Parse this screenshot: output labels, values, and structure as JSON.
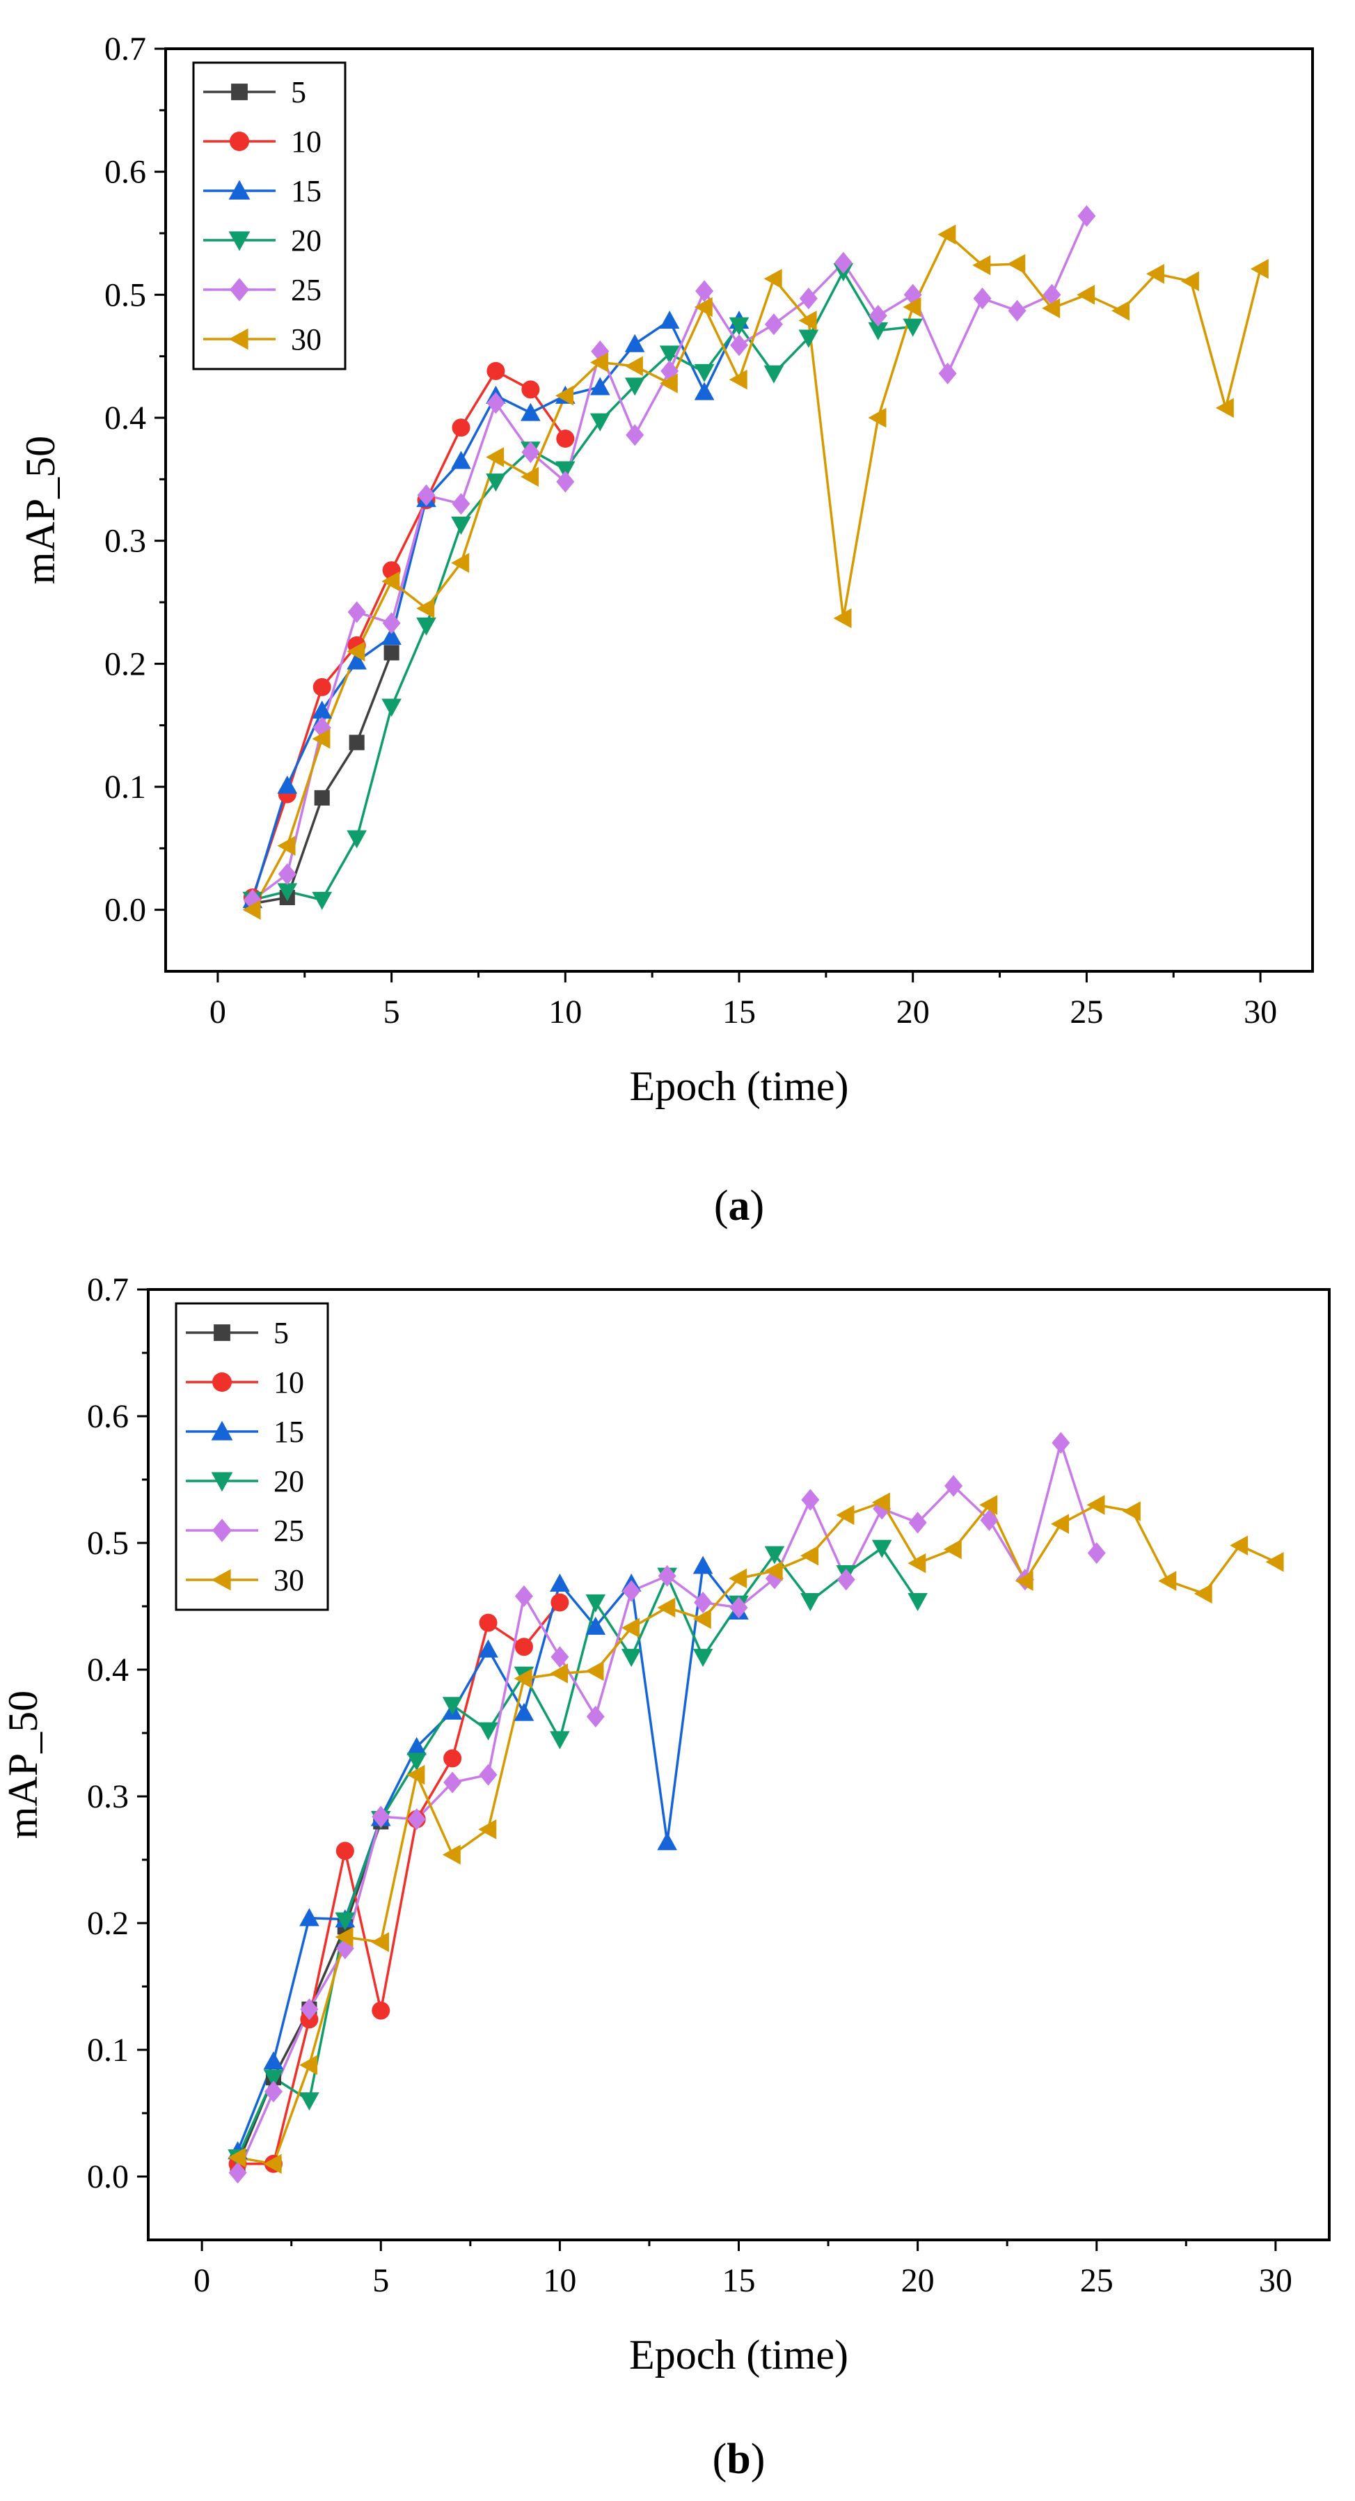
{
  "figure": {
    "panels": [
      "a",
      "b"
    ],
    "panel_label_open": "(",
    "panel_label_close": ")"
  },
  "chart_data": [
    {
      "type": "line",
      "panel": "a",
      "title": "",
      "xlabel": "Epoch (time)",
      "ylabel": "mAP_50",
      "xlim": [
        -1.5,
        31.5
      ],
      "ylim": [
        -0.05,
        0.7
      ],
      "xticks": [
        0,
        5,
        10,
        15,
        20,
        25,
        30
      ],
      "yticks": [
        0.0,
        0.1,
        0.2,
        0.3,
        0.4,
        0.5,
        0.6,
        0.7
      ],
      "ytick_labels": [
        "0.0",
        "0.1",
        "0.2",
        "0.3",
        "0.4",
        "0.5",
        "0.6",
        "0.7"
      ],
      "grid": false,
      "legend_position": "top-left",
      "series": [
        {
          "name": "5",
          "color": "#404040",
          "marker": "square",
          "x": [
            1,
            2,
            3,
            4,
            5
          ],
          "y": [
            0.005,
            0.01,
            0.091,
            0.136,
            0.209
          ]
        },
        {
          "name": "10",
          "color": "#f0312b",
          "marker": "circle",
          "x": [
            1,
            2,
            3,
            4,
            5,
            6,
            7,
            8,
            9,
            10
          ],
          "y": [
            0.01,
            0.094,
            0.181,
            0.215,
            0.276,
            0.333,
            0.392,
            0.438,
            0.423,
            0.383
          ]
        },
        {
          "name": "15",
          "color": "#1565d8",
          "marker": "triangle-up",
          "x": [
            1,
            2,
            3,
            4,
            5,
            6,
            7,
            8,
            9,
            10,
            11,
            12,
            13,
            14,
            15
          ],
          "y": [
            0.008,
            0.101,
            0.162,
            0.202,
            0.222,
            0.334,
            0.365,
            0.418,
            0.404,
            0.418,
            0.425,
            0.46,
            0.479,
            0.421,
            0.479
          ]
        },
        {
          "name": "20",
          "color": "#0f9d6b",
          "marker": "triangle-down",
          "x": [
            1,
            2,
            3,
            4,
            5,
            6,
            7,
            8,
            9,
            10,
            11,
            12,
            13,
            14,
            15,
            16,
            17,
            18,
            19,
            20
          ],
          "y": [
            0.008,
            0.015,
            0.008,
            0.058,
            0.165,
            0.231,
            0.313,
            0.348,
            0.374,
            0.358,
            0.397,
            0.426,
            0.452,
            0.437,
            0.475,
            0.436,
            0.465,
            0.519,
            0.471,
            0.474
          ]
        },
        {
          "name": "25",
          "color": "#c87be8",
          "marker": "diamond",
          "x": [
            1,
            2,
            3,
            4,
            5,
            6,
            7,
            8,
            9,
            10,
            11,
            12,
            13,
            14,
            15,
            16,
            17,
            18,
            19,
            20,
            21,
            22,
            23,
            24,
            25
          ],
          "y": [
            0.008,
            0.029,
            0.148,
            0.242,
            0.233,
            0.337,
            0.33,
            0.412,
            0.372,
            0.348,
            0.454,
            0.386,
            0.438,
            0.503,
            0.459,
            0.476,
            0.497,
            0.526,
            0.483,
            0.5,
            0.436,
            0.497,
            0.487,
            0.5,
            0.564
          ]
        },
        {
          "name": "30",
          "color": "#d69a00",
          "marker": "triangle-left",
          "x": [
            1,
            2,
            3,
            4,
            5,
            6,
            7,
            8,
            9,
            10,
            11,
            12,
            13,
            14,
            15,
            16,
            17,
            18,
            19,
            20,
            21,
            22,
            23,
            24,
            25,
            26,
            27,
            28,
            29,
            30
          ],
          "y": [
            0.0,
            0.052,
            0.139,
            0.21,
            0.267,
            0.245,
            0.282,
            0.368,
            0.352,
            0.418,
            0.445,
            0.442,
            0.428,
            0.49,
            0.431,
            0.513,
            0.479,
            0.237,
            0.4,
            0.49,
            0.549,
            0.524,
            0.525,
            0.489,
            0.5,
            0.487,
            0.517,
            0.511,
            0.408,
            0.521
          ]
        }
      ]
    },
    {
      "type": "line",
      "panel": "b",
      "title": "",
      "xlabel": "Epoch (time)",
      "ylabel": "mAP_50",
      "xlim": [
        -1.5,
        31.5
      ],
      "ylim": [
        -0.05,
        0.7
      ],
      "xticks": [
        0,
        5,
        10,
        15,
        20,
        25,
        30
      ],
      "yticks": [
        0.0,
        0.1,
        0.2,
        0.3,
        0.4,
        0.5,
        0.6,
        0.7
      ],
      "ytick_labels": [
        "0.0",
        "0.1",
        "0.2",
        "0.3",
        "0.4",
        "0.5",
        "0.6",
        "0.7"
      ],
      "grid": false,
      "legend_position": "top-left",
      "series": [
        {
          "name": "5",
          "color": "#404040",
          "marker": "square",
          "x": [
            1,
            2,
            3,
            4,
            5
          ],
          "y": [
            0.01,
            0.078,
            0.132,
            0.197,
            0.28
          ]
        },
        {
          "name": "10",
          "color": "#f0312b",
          "marker": "circle",
          "x": [
            1,
            2,
            3,
            4,
            5,
            6,
            7,
            8,
            9,
            10
          ],
          "y": [
            0.01,
            0.01,
            0.124,
            0.257,
            0.131,
            0.282,
            0.33,
            0.437,
            0.418,
            0.453
          ]
        },
        {
          "name": "15",
          "color": "#1565d8",
          "marker": "triangle-up",
          "x": [
            1,
            2,
            3,
            4,
            5,
            6,
            7,
            8,
            9,
            10,
            11,
            12,
            13,
            14,
            15
          ],
          "y": [
            0.02,
            0.091,
            0.204,
            0.203,
            0.283,
            0.339,
            0.367,
            0.416,
            0.366,
            0.468,
            0.434,
            0.468,
            0.264,
            0.482,
            0.446
          ]
        },
        {
          "name": "20",
          "color": "#0f9d6b",
          "marker": "triangle-down",
          "x": [
            1,
            2,
            3,
            4,
            5,
            6,
            7,
            8,
            9,
            10,
            11,
            12,
            13,
            14,
            15,
            16,
            17,
            18,
            19,
            20
          ],
          "y": [
            0.015,
            0.078,
            0.06,
            0.202,
            0.282,
            0.328,
            0.372,
            0.352,
            0.396,
            0.345,
            0.453,
            0.41,
            0.474,
            0.41,
            0.452,
            0.491,
            0.454,
            0.476,
            0.496,
            0.454
          ]
        },
        {
          "name": "25",
          "color": "#c87be8",
          "marker": "diamond",
          "x": [
            1,
            2,
            3,
            4,
            5,
            6,
            7,
            8,
            9,
            10,
            11,
            12,
            13,
            14,
            15,
            16,
            17,
            18,
            19,
            20,
            21,
            22,
            23,
            24,
            25
          ],
          "y": [
            0.003,
            0.067,
            0.132,
            0.18,
            0.284,
            0.282,
            0.311,
            0.317,
            0.458,
            0.41,
            0.363,
            0.462,
            0.474,
            0.453,
            0.449,
            0.472,
            0.534,
            0.471,
            0.527,
            0.516,
            0.545,
            0.518,
            0.471,
            0.579,
            0.492
          ]
        },
        {
          "name": "30",
          "color": "#d69a00",
          "marker": "triangle-left",
          "x": [
            1,
            2,
            3,
            4,
            5,
            6,
            7,
            8,
            9,
            10,
            11,
            12,
            13,
            14,
            15,
            16,
            17,
            18,
            19,
            20,
            21,
            22,
            23,
            24,
            25,
            26,
            27,
            28,
            29,
            30
          ],
          "y": [
            0.015,
            0.01,
            0.088,
            0.189,
            0.185,
            0.317,
            0.254,
            0.274,
            0.393,
            0.397,
            0.399,
            0.433,
            0.449,
            0.44,
            0.472,
            0.478,
            0.49,
            0.522,
            0.532,
            0.484,
            0.495,
            0.53,
            0.47,
            0.515,
            0.53,
            0.525,
            0.47,
            0.46,
            0.498,
            0.485
          ]
        }
      ]
    }
  ]
}
